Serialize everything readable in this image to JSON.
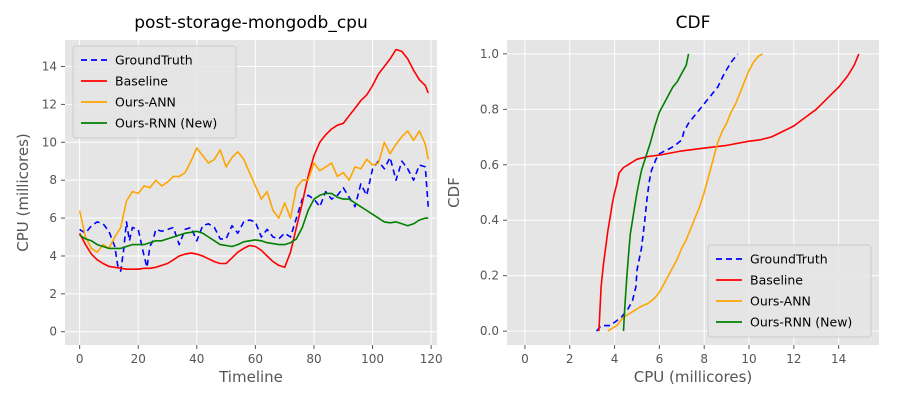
{
  "chart_data": [
    {
      "type": "line",
      "title": "post-storage-mongodb_cpu",
      "xlabel": "Timeline",
      "ylabel": "CPU (millicores)",
      "xlim": [
        -5,
        122
      ],
      "ylim": [
        -0.7,
        15.4
      ],
      "xticks": [
        0,
        20,
        40,
        60,
        80,
        100,
        120
      ],
      "yticks": [
        0,
        2,
        4,
        6,
        8,
        10,
        12,
        14
      ],
      "grid": true,
      "legend_position": "upper-left",
      "series": [
        {
          "name": "GroundTruth",
          "color": "#0000ff",
          "dash": "6,4",
          "x": [
            0,
            2,
            4,
            6,
            8,
            10,
            12,
            13,
            14,
            15,
            16,
            17,
            18,
            20,
            22,
            23,
            24,
            25,
            26,
            28,
            30,
            32,
            34,
            36,
            38,
            40,
            42,
            44,
            46,
            48,
            50,
            52,
            54,
            56,
            58,
            60,
            62,
            64,
            66,
            68,
            70,
            72,
            74,
            76,
            78,
            80,
            82,
            84,
            86,
            88,
            90,
            92,
            94,
            96,
            98,
            100,
            102,
            104,
            106,
            108,
            110,
            112,
            114,
            116,
            118,
            119
          ],
          "y": [
            5.4,
            5.2,
            5.6,
            5.8,
            5.7,
            5.3,
            4.5,
            3.5,
            3.2,
            4.3,
            5.8,
            4.8,
            5.5,
            5.4,
            4.0,
            3.4,
            4.5,
            4.8,
            5.4,
            5.3,
            5.4,
            5.5,
            4.6,
            5.4,
            5.5,
            4.8,
            5.6,
            5.7,
            5.5,
            4.9,
            4.9,
            5.6,
            5.2,
            5.8,
            5.9,
            5.8,
            5.0,
            5.4,
            5.0,
            4.9,
            5.2,
            5.0,
            6.0,
            7.0,
            7.2,
            7.0,
            6.6,
            7.4,
            7.0,
            7.2,
            7.6,
            7.1,
            6.6,
            7.8,
            7.2,
            8.6,
            9.0,
            8.6,
            9.2,
            8.0,
            9.0,
            8.6,
            8.0,
            8.8,
            8.7,
            6.6
          ]
        },
        {
          "name": "Baseline",
          "color": "#ff0000",
          "x": [
            0,
            2,
            4,
            6,
            8,
            10,
            12,
            14,
            16,
            18,
            20,
            22,
            24,
            26,
            28,
            30,
            32,
            34,
            36,
            38,
            40,
            42,
            44,
            46,
            48,
            50,
            52,
            54,
            56,
            58,
            60,
            62,
            64,
            66,
            68,
            70,
            72,
            74,
            76,
            78,
            80,
            82,
            84,
            86,
            88,
            90,
            92,
            94,
            96,
            98,
            100,
            102,
            104,
            106,
            108,
            110,
            112,
            114,
            116,
            118,
            119
          ],
          "y": [
            5.2,
            4.6,
            4.1,
            3.8,
            3.6,
            3.45,
            3.4,
            3.35,
            3.3,
            3.3,
            3.3,
            3.35,
            3.35,
            3.4,
            3.5,
            3.6,
            3.8,
            4.0,
            4.1,
            4.15,
            4.1,
            4.0,
            3.85,
            3.7,
            3.6,
            3.6,
            3.9,
            4.2,
            4.4,
            4.55,
            4.5,
            4.3,
            4.0,
            3.7,
            3.5,
            3.4,
            4.2,
            5.5,
            6.8,
            8.2,
            9.3,
            10.0,
            10.4,
            10.7,
            10.9,
            11.0,
            11.4,
            11.8,
            12.2,
            12.5,
            13.0,
            13.6,
            14.0,
            14.4,
            14.9,
            14.8,
            14.4,
            13.8,
            13.3,
            13.0,
            12.6
          ]
        },
        {
          "name": "Ours-ANN",
          "color": "#ffa500",
          "x": [
            0,
            2,
            4,
            6,
            8,
            10,
            12,
            14,
            16,
            18,
            20,
            22,
            24,
            26,
            28,
            30,
            32,
            34,
            36,
            38,
            40,
            42,
            44,
            46,
            48,
            50,
            52,
            54,
            56,
            58,
            60,
            62,
            64,
            66,
            68,
            70,
            72,
            74,
            76,
            78,
            80,
            82,
            84,
            86,
            88,
            90,
            92,
            94,
            96,
            98,
            100,
            102,
            104,
            106,
            108,
            110,
            112,
            114,
            116,
            118,
            119
          ],
          "y": [
            6.4,
            5.0,
            4.4,
            4.2,
            4.6,
            4.4,
            5.0,
            5.5,
            6.9,
            7.4,
            7.3,
            7.7,
            7.6,
            8.0,
            7.7,
            7.9,
            8.2,
            8.2,
            8.4,
            9.0,
            9.7,
            9.3,
            8.9,
            9.1,
            9.6,
            8.7,
            9.2,
            9.5,
            9.1,
            8.4,
            7.7,
            7.0,
            7.4,
            6.4,
            6.0,
            6.8,
            6.0,
            7.6,
            8.0,
            8.0,
            8.9,
            8.5,
            8.7,
            8.9,
            8.2,
            8.4,
            8.0,
            8.7,
            8.6,
            9.1,
            8.8,
            8.9,
            10.0,
            9.4,
            9.9,
            10.3,
            10.6,
            10.1,
            10.6,
            9.9,
            9.1
          ]
        },
        {
          "name": "Ours-RNN (New)",
          "color": "#008000",
          "x": [
            0,
            2,
            4,
            6,
            8,
            10,
            12,
            14,
            16,
            18,
            20,
            22,
            24,
            26,
            28,
            30,
            32,
            34,
            36,
            38,
            40,
            42,
            44,
            46,
            48,
            50,
            52,
            54,
            56,
            58,
            60,
            62,
            64,
            66,
            68,
            70,
            72,
            74,
            76,
            78,
            80,
            82,
            84,
            86,
            88,
            90,
            92,
            94,
            96,
            98,
            100,
            102,
            104,
            106,
            108,
            110,
            112,
            114,
            116,
            118,
            119
          ],
          "y": [
            5.1,
            4.9,
            4.8,
            4.6,
            4.5,
            4.4,
            4.4,
            4.4,
            4.5,
            4.6,
            4.6,
            4.6,
            4.7,
            4.8,
            4.8,
            4.9,
            5.0,
            5.1,
            5.2,
            5.25,
            5.3,
            5.2,
            5.0,
            4.8,
            4.6,
            4.55,
            4.5,
            4.6,
            4.75,
            4.8,
            4.85,
            4.8,
            4.7,
            4.65,
            4.6,
            4.6,
            4.7,
            4.9,
            5.5,
            6.4,
            7.0,
            7.2,
            7.3,
            7.3,
            7.1,
            7.0,
            7.0,
            6.8,
            6.6,
            6.4,
            6.2,
            6.0,
            5.8,
            5.75,
            5.8,
            5.7,
            5.6,
            5.7,
            5.9,
            6.0,
            6.0
          ]
        }
      ]
    },
    {
      "type": "line",
      "title": "CDF",
      "xlabel": "CPU (millicores)",
      "ylabel": "CDF",
      "xlim": [
        -0.8,
        15.8
      ],
      "ylim": [
        -0.05,
        1.05
      ],
      "xticks": [
        0,
        2,
        4,
        6,
        8,
        10,
        12,
        14
      ],
      "yticks": [
        0.0,
        0.2,
        0.4,
        0.6,
        0.8,
        1.0
      ],
      "grid": true,
      "legend_position": "lower-right",
      "series": [
        {
          "name": "GroundTruth",
          "color": "#0000ff",
          "dash": "6,4",
          "x": [
            3.2,
            3.4,
            3.8,
            4.3,
            4.6,
            4.8,
            4.95,
            5.0,
            5.2,
            5.35,
            5.45,
            5.55,
            5.65,
            5.75,
            5.85,
            6.0,
            6.5,
            6.7,
            7.0,
            7.1,
            7.3,
            7.6,
            8.0,
            8.6,
            8.9,
            9.2,
            9.5
          ],
          "y": [
            0.0,
            0.02,
            0.02,
            0.05,
            0.08,
            0.11,
            0.16,
            0.22,
            0.3,
            0.4,
            0.48,
            0.54,
            0.58,
            0.6,
            0.62,
            0.64,
            0.66,
            0.67,
            0.69,
            0.72,
            0.75,
            0.78,
            0.82,
            0.88,
            0.93,
            0.97,
            1.0
          ]
        },
        {
          "name": "Baseline",
          "color": "#ff0000",
          "x": [
            3.3,
            3.35,
            3.4,
            3.5,
            3.6,
            3.7,
            3.8,
            3.9,
            4.0,
            4.1,
            4.2,
            4.4,
            4.6,
            5.0,
            5.5,
            6.0,
            7.0,
            8.0,
            9.0,
            10.0,
            10.5,
            11.0,
            11.5,
            12.0,
            12.5,
            13.0,
            13.5,
            14.0,
            14.4,
            14.7,
            14.9
          ],
          "y": [
            0.0,
            0.08,
            0.16,
            0.24,
            0.3,
            0.36,
            0.41,
            0.46,
            0.5,
            0.53,
            0.57,
            0.59,
            0.6,
            0.62,
            0.63,
            0.635,
            0.65,
            0.66,
            0.67,
            0.685,
            0.69,
            0.7,
            0.72,
            0.74,
            0.77,
            0.8,
            0.84,
            0.88,
            0.92,
            0.96,
            1.0
          ]
        },
        {
          "name": "Ours-ANN",
          "color": "#ffa500",
          "x": [
            3.7,
            4.1,
            4.2,
            4.4,
            4.6,
            4.8,
            5.0,
            5.2,
            5.5,
            5.8,
            6.0,
            6.2,
            6.4,
            6.6,
            6.8,
            7.0,
            7.2,
            7.4,
            7.6,
            7.8,
            8.0,
            8.2,
            8.4,
            8.6,
            8.8,
            9.0,
            9.2,
            9.4,
            9.6,
            9.8,
            10.0,
            10.2,
            10.4,
            10.6
          ],
          "y": [
            0.0,
            0.02,
            0.03,
            0.05,
            0.06,
            0.07,
            0.08,
            0.09,
            0.1,
            0.12,
            0.14,
            0.17,
            0.2,
            0.23,
            0.26,
            0.3,
            0.33,
            0.37,
            0.41,
            0.45,
            0.5,
            0.56,
            0.62,
            0.68,
            0.72,
            0.75,
            0.79,
            0.82,
            0.86,
            0.9,
            0.94,
            0.97,
            0.99,
            1.0
          ]
        },
        {
          "name": "Ours-RNN (New)",
          "color": "#008000",
          "x": [
            4.4,
            4.45,
            4.5,
            4.55,
            4.6,
            4.65,
            4.7,
            4.8,
            4.9,
            5.0,
            5.1,
            5.2,
            5.4,
            5.6,
            5.8,
            6.0,
            6.2,
            6.4,
            6.6,
            6.8,
            7.0,
            7.2,
            7.3
          ],
          "y": [
            0.0,
            0.08,
            0.14,
            0.2,
            0.25,
            0.3,
            0.35,
            0.4,
            0.45,
            0.5,
            0.54,
            0.58,
            0.63,
            0.68,
            0.74,
            0.79,
            0.82,
            0.85,
            0.88,
            0.9,
            0.93,
            0.96,
            1.0
          ]
        }
      ]
    }
  ]
}
